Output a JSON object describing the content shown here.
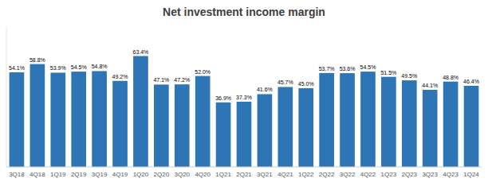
{
  "chart_data": {
    "type": "bar",
    "title": "Net investment income margin",
    "categories": [
      "3Q18",
      "4Q18",
      "1Q19",
      "2Q19",
      "3Q19",
      "4Q19",
      "1Q20",
      "2Q20",
      "3Q20",
      "4Q20",
      "1Q21",
      "2Q21",
      "3Q21",
      "4Q21",
      "1Q22",
      "2Q22",
      "3Q22",
      "4Q22",
      "1Q23",
      "2Q23",
      "3Q23",
      "4Q23",
      "1Q24"
    ],
    "values": [
      54.1,
      58.8,
      53.9,
      54.5,
      54.8,
      49.2,
      63.4,
      47.1,
      47.2,
      52.0,
      36.9,
      37.3,
      41.6,
      45.7,
      45.0,
      53.7,
      53.6,
      54.5,
      51.5,
      49.5,
      44.1,
      48.8,
      46.4
    ],
    "value_labels": [
      "54.1%",
      "58.8%",
      "53.9%",
      "54.5%",
      "54.8%",
      "49.2%",
      "63.4%",
      "47.1%",
      "47.2%",
      "52.0%",
      "36.9%",
      "37.3%",
      "41.6%",
      "45.7%",
      "45.0%",
      "53.7%",
      "53.6%",
      "54.5%",
      "51.5%",
      "49.5%",
      "44.1%",
      "48.8%",
      "46.4%"
    ],
    "color": "#2E75B6",
    "ylim": [
      0,
      80
    ],
    "grid": false,
    "data_labels": true,
    "tick_labels": "x"
  }
}
